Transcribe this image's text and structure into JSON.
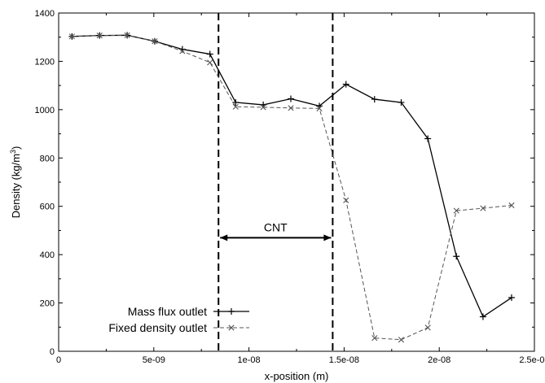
{
  "chart_data": {
    "type": "line",
    "xlabel": "x-position (m)",
    "ylabel_main": "Density (kg/m",
    "ylabel_sup": "3",
    "ylabel_close": ")",
    "xlim": [
      0,
      2.5e-08
    ],
    "ylim": [
      0,
      1400
    ],
    "x_ticks": [
      0,
      5e-09,
      1e-08,
      1.5e-08,
      2e-08,
      2.5e-08
    ],
    "x_tick_labels": [
      "0",
      "5e-09",
      "1e-08",
      "1.5e-08",
      "2e-08",
      "2.5e-08"
    ],
    "y_ticks": [
      0,
      200,
      400,
      600,
      800,
      1000,
      1200,
      1400
    ],
    "y_tick_labels": [
      "0",
      "200",
      "400",
      "600",
      "800",
      "1000",
      "1200",
      "1400"
    ],
    "grid": false,
    "legend_position": "bottom-left",
    "series": [
      {
        "name": "Mass flux outlet",
        "line": "solid",
        "marker": "+",
        "color": "#000000",
        "x": [
          7e-10,
          2.15e-09,
          3.6e-09,
          5.05e-09,
          6.5e-09,
          7.95e-09,
          9.3e-09,
          1.075e-08,
          1.22e-08,
          1.37e-08,
          1.51e-08,
          1.66e-08,
          1.8e-08,
          1.94e-08,
          2.09e-08,
          2.23e-08,
          2.38e-08
        ],
        "y": [
          1303,
          1307,
          1308,
          1283,
          1250,
          1230,
          1030,
          1020,
          1045,
          1015,
          1105,
          1043,
          1030,
          880,
          393,
          143,
          222
        ]
      },
      {
        "name": "Fixed density outlet",
        "line": "dashed",
        "marker": "x",
        "color": "#555555",
        "x": [
          7e-10,
          2.15e-09,
          3.6e-09,
          5.05e-09,
          6.5e-09,
          7.95e-09,
          9.3e-09,
          1.075e-08,
          1.22e-08,
          1.37e-08,
          1.51e-08,
          1.66e-08,
          1.8e-08,
          1.94e-08,
          2.09e-08,
          2.23e-08,
          2.38e-08
        ],
        "y": [
          1303,
          1307,
          1308,
          1283,
          1242,
          1195,
          1012,
          1010,
          1007,
          1005,
          625,
          55,
          48,
          98,
          582,
          592,
          604
        ]
      }
    ],
    "annotations": {
      "cnt_label": "CNT",
      "cnt_x_start": 8.4e-09,
      "cnt_x_end": 1.44e-08,
      "cnt_arrow_y": 470
    }
  }
}
